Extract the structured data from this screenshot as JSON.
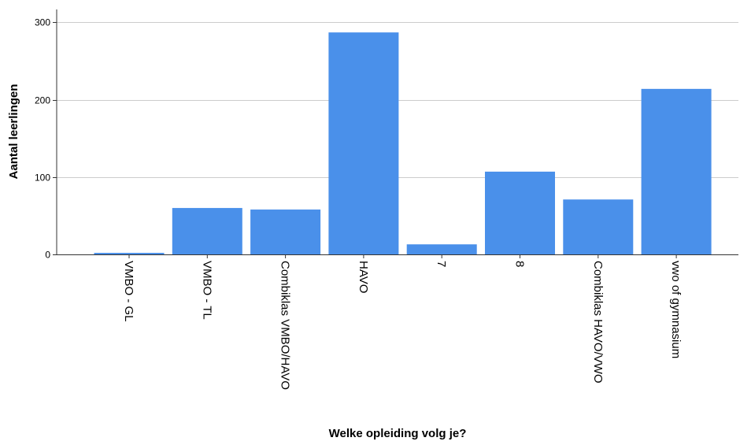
{
  "chart_data": {
    "type": "bar",
    "title": "",
    "xlabel": "Welke opleiding volg je?",
    "ylabel": "Aantal leerlingen",
    "categories": [
      "VMBO - GL",
      "VMBO - TL",
      "Combiklas VMBO/HAVO",
      "HAVO",
      "7",
      "8",
      "Combiklas HAVO/VWO",
      "vwo of gymnasium"
    ],
    "values": [
      2,
      60,
      58,
      287,
      13,
      107,
      71,
      214
    ],
    "ylim": [
      0,
      320
    ],
    "yticks": [
      0,
      100,
      200,
      300
    ],
    "grid": true,
    "legend": "none",
    "bar_color": "#4a90ea",
    "grid_color": "#cccccc"
  }
}
